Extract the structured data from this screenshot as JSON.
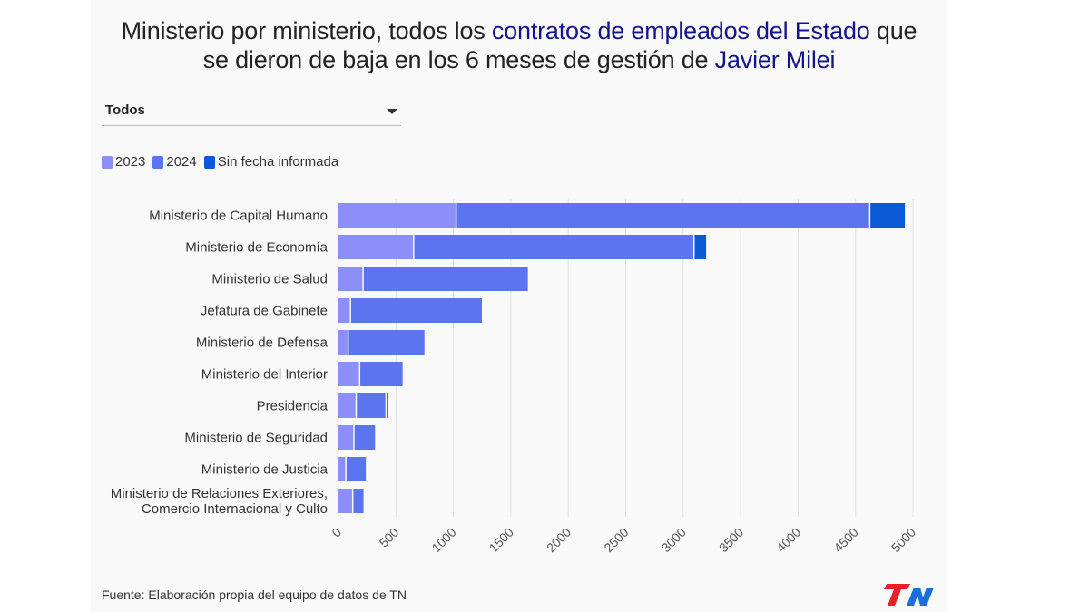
{
  "title": {
    "part1": "Ministerio por ministerio, todos los ",
    "highlight1": "contratos de empleados del Estado",
    "part2": " que",
    "part3": "se dieron de baja en los 6 meses de gestión de ",
    "highlight2": "Javier Milei"
  },
  "filter": {
    "selected": "Todos"
  },
  "source": "Fuente: Elaboración propia del equipo de datos de TN",
  "logo_text": "TN",
  "colors": {
    "s2023": "#8b8ff7",
    "s2024": "#5b74f0",
    "s_none": "#0b5ad8",
    "title_highlight": "#14148c",
    "logo_red": "#e8202a",
    "logo_blue": "#1b6fd8"
  },
  "chart_data": {
    "type": "bar",
    "orientation": "horizontal",
    "stacked": true,
    "categories": [
      [
        "Ministerio de Capital Humano"
      ],
      [
        "Ministerio de Economía"
      ],
      [
        "Ministerio de Salud"
      ],
      [
        "Jefatura de Gabinete"
      ],
      [
        "Ministerio de Defensa"
      ],
      [
        "Ministerio del Interior"
      ],
      [
        "Presidencia"
      ],
      [
        "Ministerio de Seguridad"
      ],
      [
        "Ministerio de Justicia"
      ],
      [
        "Ministerio de Relaciones Exteriores,",
        "Comercio Internacional y Culto"
      ]
    ],
    "series": [
      {
        "name": "2023",
        "values": [
          1030,
          660,
          220,
          110,
          90,
          190,
          160,
          140,
          70,
          130
        ]
      },
      {
        "name": "2024",
        "values": [
          3600,
          2440,
          1440,
          1150,
          670,
          380,
          260,
          190,
          180,
          100
        ]
      },
      {
        "name": "Sin fecha informada",
        "values": [
          300,
          100,
          0,
          0,
          0,
          0,
          10,
          0,
          0,
          0
        ]
      }
    ],
    "xlim": [
      0,
      5000
    ],
    "xticks": [
      0,
      500,
      1000,
      1500,
      2000,
      2500,
      3000,
      3500,
      4000,
      4500,
      5000
    ],
    "grid": true,
    "legend_position": "top-left"
  }
}
